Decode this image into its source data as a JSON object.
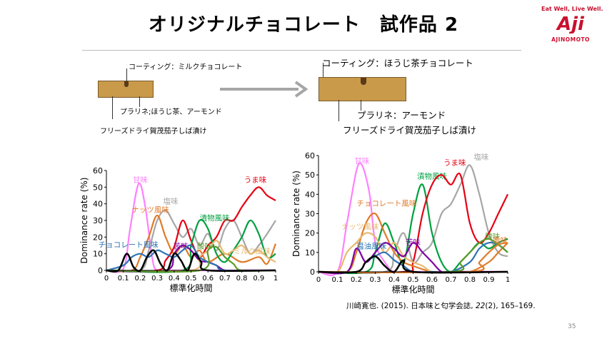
{
  "title": "オリジナルチョコレート　試作品 2",
  "logo": {
    "tagline": "Eat Well, Live Well.",
    "brand": "AJINOMOTO",
    "mark": "Aji"
  },
  "left_sample": {
    "coating": "コーティング：ミルクチョコレート",
    "praline": "プラリネ;ほうじ茶、アーモンド",
    "inclusion": "フリーズドライ賀茂茄子しば漬け"
  },
  "right_sample": {
    "coating": "コーティング：ほうじ茶チョコレート",
    "praline": "プラリネ：アーモンド",
    "inclusion": "フリーズドライ賀茂茄子しば漬け"
  },
  "citation": {
    "prefix": "川崎寛也. (2015). 日本味と匂学会誌, ",
    "volume": "22",
    "rest": "(2), 165–169."
  },
  "page_number": "35",
  "chart_data": [
    {
      "type": "line",
      "xlabel": "標準化時間",
      "ylabel": "Dominance rate (%)",
      "xlim": [
        0,
        1
      ],
      "ylim": [
        0,
        60
      ],
      "xticks": [
        "0",
        "0.1",
        "0.2",
        "0.3",
        "0.4",
        "0.5",
        "0.6",
        "0.7",
        "0.8",
        "0.9",
        "1"
      ],
      "yticks": [
        "0",
        "10",
        "20",
        "30",
        "40",
        "50",
        "60"
      ],
      "grid": false,
      "series": [
        {
          "name": "甘味",
          "color": "#ff80ff",
          "label_x": 0.2,
          "label_y": 53,
          "x": [
            0,
            0.1,
            0.14,
            0.19,
            0.23,
            0.27,
            0.3,
            0.4,
            0.5,
            0.6,
            0.7,
            0.8,
            0.9,
            1
          ],
          "y": [
            0,
            1,
            25,
            52,
            38,
            8,
            0,
            0,
            0,
            0,
            0,
            0,
            0,
            0
          ]
        },
        {
          "name": "塩味",
          "color": "#a6a6a6",
          "label_x": 0.38,
          "label_y": 40,
          "x": [
            0,
            0.2,
            0.25,
            0.3,
            0.35,
            0.4,
            0.45,
            0.5,
            0.55,
            0.6,
            0.65,
            0.7,
            0.75,
            0.8,
            0.85,
            0.9,
            0.95,
            1
          ],
          "y": [
            0,
            0,
            12,
            30,
            36,
            28,
            20,
            25,
            15,
            22,
            12,
            25,
            30,
            20,
            10,
            15,
            22,
            30
          ]
        },
        {
          "name": "ナッツ風味",
          "color": "#e07b2a",
          "label_x": 0.26,
          "label_y": 35,
          "x": [
            0,
            0.15,
            0.2,
            0.25,
            0.3,
            0.35,
            0.4,
            0.45,
            0.5,
            0.55,
            0.6,
            0.7,
            0.8,
            0.9,
            0.95,
            1
          ],
          "y": [
            0,
            0,
            8,
            20,
            33,
            20,
            10,
            15,
            8,
            12,
            5,
            10,
            5,
            8,
            4,
            16
          ]
        },
        {
          "name": "うま味",
          "color": "#e60012",
          "label_x": 0.88,
          "label_y": 53,
          "x": [
            0,
            0.3,
            0.35,
            0.4,
            0.45,
            0.5,
            0.55,
            0.6,
            0.65,
            0.7,
            0.75,
            0.8,
            0.85,
            0.9,
            0.95,
            1
          ],
          "y": [
            0,
            0,
            6,
            14,
            30,
            18,
            8,
            15,
            20,
            30,
            30,
            38,
            45,
            50,
            45,
            42
          ]
        },
        {
          "name": "漬物風味",
          "color": "#00a040",
          "label_x": 0.64,
          "label_y": 30,
          "x": [
            0,
            0.45,
            0.5,
            0.55,
            0.6,
            0.65,
            0.7,
            0.75,
            0.8,
            0.85,
            0.9,
            0.95,
            1
          ],
          "y": [
            0,
            0,
            15,
            30,
            25,
            10,
            5,
            12,
            20,
            30,
            22,
            8,
            10
          ]
        },
        {
          "name": "苦味",
          "color": "#8000a0",
          "label_x": 0.44,
          "label_y": 13,
          "x": [
            0,
            0.35,
            0.4,
            0.45,
            0.5,
            0.55,
            0.6,
            0.65,
            0.7,
            0.8,
            1
          ],
          "y": [
            0,
            0,
            10,
            15,
            12,
            6,
            5,
            3,
            0,
            0,
            0
          ]
        },
        {
          "name": "チョコレート風味",
          "color": "#2e74b5",
          "label_x": 0.13,
          "label_y": 14,
          "x": [
            0,
            0.1,
            0.15,
            0.2,
            0.25,
            0.3,
            0.35,
            0.4,
            0.45,
            0.5,
            0.55,
            0.6,
            0.65,
            0.7,
            1
          ],
          "y": [
            0,
            3,
            8,
            10,
            8,
            12,
            10,
            8,
            12,
            15,
            8,
            5,
            3,
            0,
            0
          ]
        },
        {
          "name": "ミルク風味",
          "color": "#e8b870",
          "label_x": 0.86,
          "label_y": 10,
          "x": [
            0,
            0.5,
            0.55,
            0.6,
            0.65,
            0.7,
            0.75,
            0.8,
            0.85,
            0.9,
            0.95,
            1
          ],
          "y": [
            0,
            0,
            8,
            12,
            18,
            10,
            12,
            15,
            10,
            12,
            8,
            5
          ]
        },
        {
          "name": "酸味",
          "color": "#5a9a2a",
          "label_x": 0.58,
          "label_y": 13,
          "x": [
            0,
            0.55,
            0.6,
            0.65,
            0.7,
            0.75,
            0.8,
            1
          ],
          "y": [
            0,
            0,
            12,
            14,
            8,
            4,
            0,
            0
          ]
        },
        {
          "name": "",
          "color": "#000000",
          "x": [
            0,
            0.07,
            0.12,
            0.16,
            0.2,
            0.24,
            0.28,
            0.32,
            0.36,
            0.4,
            0.44,
            0.48,
            0.52,
            0.56,
            0.6,
            1
          ],
          "y": [
            0,
            0,
            10,
            2,
            0,
            8,
            12,
            4,
            0,
            10,
            6,
            0,
            10,
            5,
            0,
            0
          ]
        }
      ]
    },
    {
      "type": "line",
      "xlabel": "標準化時間",
      "ylabel": "Dominance rate (%)",
      "xlim": [
        0,
        1
      ],
      "ylim": [
        0,
        60
      ],
      "xticks": [
        "0",
        "0.1",
        "0.2",
        "0.3",
        "0.4",
        "0.5",
        "0.6",
        "0.7",
        "0.8",
        "0.9",
        "1"
      ],
      "yticks": [
        "0",
        "10",
        "20",
        "30",
        "40",
        "50",
        "60"
      ],
      "grid": false,
      "series": [
        {
          "name": "甘味",
          "color": "#ff80ff",
          "label_x": 0.23,
          "label_y": 56,
          "x": [
            0,
            0.1,
            0.15,
            0.2,
            0.23,
            0.27,
            0.3,
            0.35,
            0.4,
            0.5,
            0.6,
            0.7,
            0.8,
            0.9,
            1
          ],
          "y": [
            0,
            0,
            25,
            52,
            55,
            40,
            15,
            5,
            0,
            0,
            0,
            0,
            0,
            0,
            0
          ]
        },
        {
          "name": "塩味",
          "color": "#a6a6a6",
          "label_x": 0.86,
          "label_y": 58,
          "x": [
            0,
            0.35,
            0.4,
            0.45,
            0.5,
            0.55,
            0.6,
            0.65,
            0.7,
            0.75,
            0.8,
            0.85,
            0.9,
            0.95,
            1
          ],
          "y": [
            0,
            0,
            10,
            20,
            5,
            10,
            15,
            30,
            35,
            45,
            55,
            40,
            20,
            10,
            8
          ]
        },
        {
          "name": "漬物風味",
          "color": "#00a040",
          "label_x": 0.6,
          "label_y": 48,
          "x": [
            0,
            0.25,
            0.3,
            0.35,
            0.4,
            0.45,
            0.5,
            0.55,
            0.6,
            0.65,
            0.7,
            0.75,
            0.8,
            0.85,
            0.9,
            0.95,
            1
          ],
          "y": [
            0,
            0,
            10,
            25,
            15,
            5,
            30,
            45,
            20,
            5,
            0,
            5,
            10,
            15,
            12,
            15,
            17
          ]
        },
        {
          "name": "うま味",
          "color": "#e60012",
          "label_x": 0.72,
          "label_y": 55,
          "x": [
            0,
            0.45,
            0.5,
            0.55,
            0.6,
            0.65,
            0.7,
            0.75,
            0.8,
            0.85,
            0.9,
            0.95,
            1
          ],
          "y": [
            0,
            0,
            5,
            30,
            45,
            50,
            45,
            50,
            25,
            15,
            20,
            30,
            40
          ]
        },
        {
          "name": "チョコレート風味",
          "color": "#e07b2a",
          "label_x": 0.36,
          "label_y": 34,
          "x": [
            0,
            0.15,
            0.2,
            0.25,
            0.3,
            0.35,
            0.4,
            0.45,
            0.5,
            0.6,
            0.7,
            0.8,
            0.9,
            0.95,
            1
          ],
          "y": [
            0,
            0,
            10,
            25,
            30,
            20,
            10,
            5,
            3,
            0,
            0,
            0,
            5,
            10,
            15
          ]
        },
        {
          "name": "ナッツ風味",
          "color": "#e8b870",
          "label_x": 0.22,
          "label_y": 22,
          "x": [
            0,
            0.1,
            0.15,
            0.2,
            0.25,
            0.3,
            0.35,
            0.4,
            0.45,
            0.5,
            0.55,
            0.6,
            0.7,
            0.8,
            1
          ],
          "y": [
            0,
            0,
            10,
            15,
            20,
            18,
            10,
            15,
            8,
            5,
            3,
            0,
            0,
            0,
            0
          ]
        },
        {
          "name": "苦味",
          "color": "#8000a0",
          "label_x": 0.5,
          "label_y": 14,
          "x": [
            0,
            0.15,
            0.2,
            0.25,
            0.3,
            0.35,
            0.4,
            0.45,
            0.5,
            0.55,
            0.6,
            0.65,
            0.7,
            1
          ],
          "y": [
            0,
            0,
            12,
            5,
            10,
            15,
            12,
            8,
            15,
            10,
            5,
            0,
            0,
            0
          ]
        },
        {
          "name": "醤油風味",
          "color": "#2e74b5",
          "label_x": 0.28,
          "label_y": 12,
          "x": [
            0,
            0.2,
            0.25,
            0.3,
            0.35,
            0.4,
            0.45,
            0.5,
            0.6,
            0.7,
            0.8,
            0.85,
            0.9,
            0.95,
            1
          ],
          "y": [
            0,
            0,
            5,
            8,
            10,
            6,
            3,
            0,
            0,
            0,
            5,
            12,
            15,
            14,
            10
          ]
        },
        {
          "name": "酸味",
          "color": "#5a9a2a",
          "label_x": 0.92,
          "label_y": 17,
          "x": [
            0,
            0.7,
            0.75,
            0.8,
            0.85,
            0.9,
            0.95,
            1
          ],
          "y": [
            0,
            0,
            5,
            10,
            15,
            17,
            14,
            10
          ]
        },
        {
          "name": "風味",
          "color": "#e07b2a",
          "label_x": 0.96,
          "label_y": 15,
          "x": [
            0,
            0.8,
            0.85,
            0.9,
            0.95,
            1
          ],
          "y": [
            0,
            0,
            5,
            10,
            14,
            15
          ]
        },
        {
          "name": "",
          "color": "#000000",
          "x": [
            0,
            0.2,
            0.25,
            0.3,
            0.35,
            0.4,
            0.45,
            0.5,
            1
          ],
          "y": [
            0,
            0,
            5,
            8,
            3,
            0,
            6,
            0,
            0
          ]
        }
      ]
    }
  ]
}
